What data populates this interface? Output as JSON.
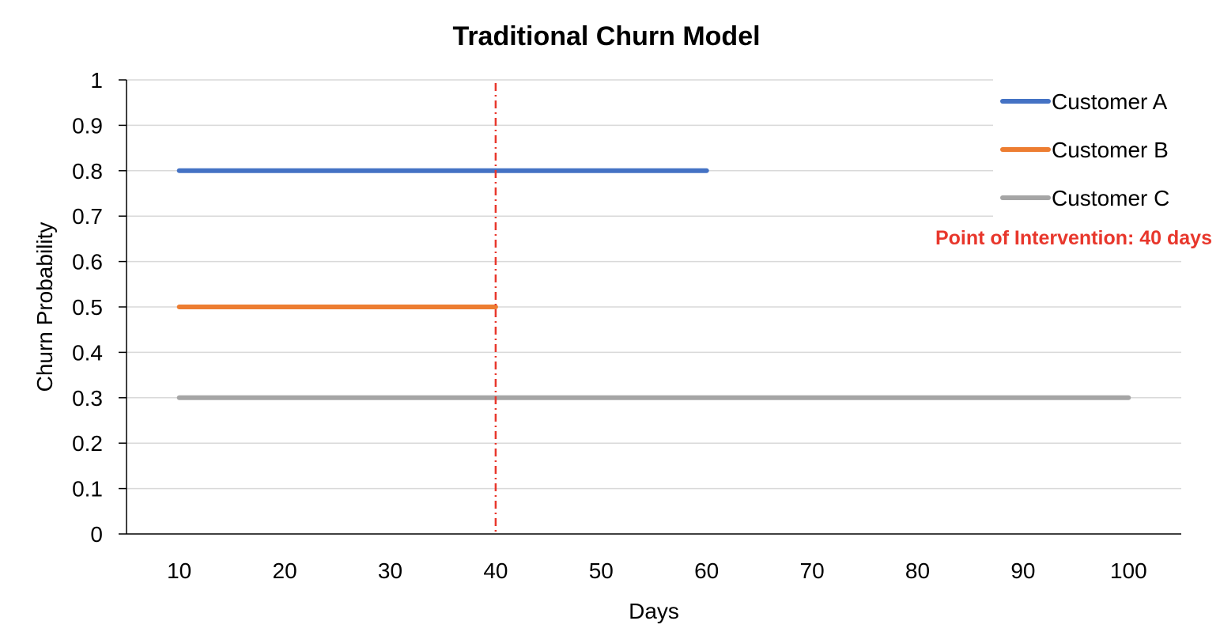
{
  "chart_data": {
    "type": "line",
    "title": "Traditional Churn Model",
    "xlabel": "Days",
    "ylabel": "Churn Probability",
    "x_ticks": [
      10,
      20,
      30,
      40,
      50,
      60,
      70,
      80,
      90,
      100
    ],
    "y_ticks": [
      0,
      0.1,
      0.2,
      0.3,
      0.4,
      0.5,
      0.6,
      0.7,
      0.8,
      0.9,
      1
    ],
    "xlim": [
      5,
      105
    ],
    "ylim": [
      0,
      1
    ],
    "grid": "horizontal",
    "legend_position": "top-right",
    "series": [
      {
        "name": "Customer A",
        "color": "#4472C4",
        "x": [
          10,
          60
        ],
        "y": [
          0.8,
          0.8
        ]
      },
      {
        "name": "Customer B",
        "color": "#ED7D31",
        "x": [
          10,
          40
        ],
        "y": [
          0.5,
          0.5
        ]
      },
      {
        "name": "Customer C",
        "color": "#A5A5A5",
        "x": [
          10,
          100
        ],
        "y": [
          0.3,
          0.3
        ]
      }
    ],
    "annotations": [
      {
        "type": "vline",
        "x": 40,
        "color": "#E8372C",
        "style": "dash-dot",
        "label": "Point of Intervention: 40 days"
      }
    ]
  }
}
